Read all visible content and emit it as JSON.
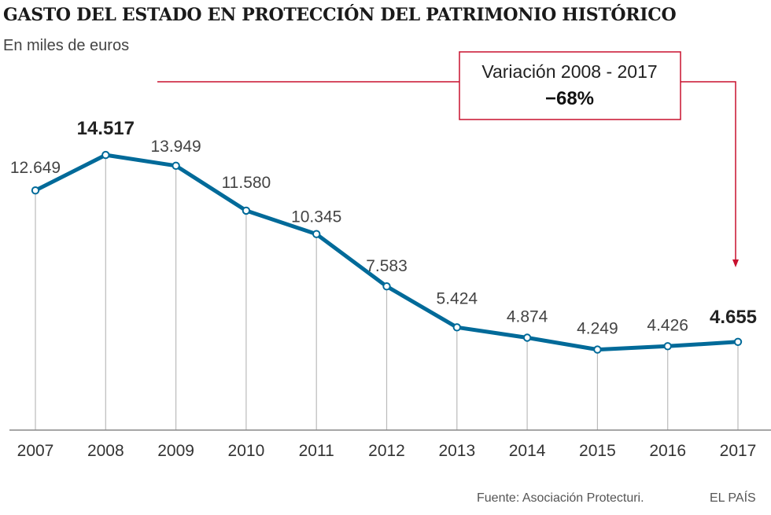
{
  "title": "GASTO DEL ESTADO EN PROTECCIÓN DEL PATRIMONIO HISTÓRICO",
  "subtitle": "En miles de euros",
  "source": "Fuente: Asociación Protecturi.",
  "brand": "EL PAÍS",
  "annotation": {
    "title": "Variación 2008 - 2017",
    "value": "−68%"
  },
  "colors": {
    "line": "#006a99",
    "annotation": "#c8102e",
    "axis": "#888888",
    "drop": "#bbbbbb"
  },
  "chart_data": {
    "type": "line",
    "title": "GASTO DEL ESTADO EN PROTECCIÓN DEL PATRIMONIO HISTÓRICO",
    "subtitle": "En miles de euros",
    "x": [
      "2007",
      "2008",
      "2009",
      "2010",
      "2011",
      "2012",
      "2013",
      "2014",
      "2015",
      "2016",
      "2017"
    ],
    "values": [
      12649,
      14517,
      13949,
      11580,
      10345,
      7583,
      5424,
      4874,
      4249,
      4426,
      4655
    ],
    "labels": [
      "12.649",
      "14.517",
      "13.949",
      "11.580",
      "10.345",
      "7.583",
      "5.424",
      "4.874",
      "4.249",
      "4.426",
      "4.655"
    ],
    "highlighted": [
      "2008",
      "2017"
    ],
    "ylim": [
      0,
      15000
    ],
    "grid": false,
    "xlabel": "",
    "ylabel": ""
  }
}
